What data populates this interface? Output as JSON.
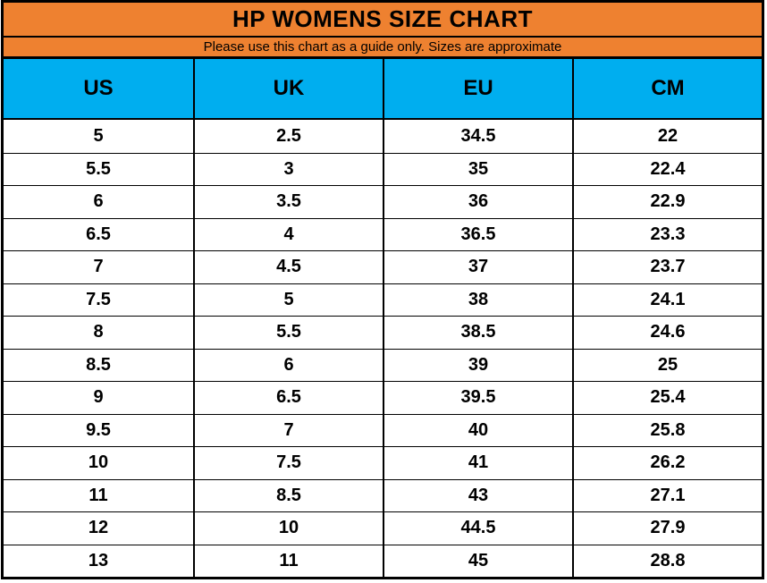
{
  "table": {
    "title": "HP WOMENS SIZE CHART",
    "subtitle": "Please use this chart as a guide only. Sizes are approximate",
    "columns": [
      "US",
      "UK",
      "EU",
      "CM"
    ],
    "rows": [
      [
        "5",
        "2.5",
        "34.5",
        "22"
      ],
      [
        "5.5",
        "3",
        "35",
        "22.4"
      ],
      [
        "6",
        "3.5",
        "36",
        "22.9"
      ],
      [
        "6.5",
        "4",
        "36.5",
        "23.3"
      ],
      [
        "7",
        "4.5",
        "37",
        "23.7"
      ],
      [
        "7.5",
        "5",
        "38",
        "24.1"
      ],
      [
        "8",
        "5.5",
        "38.5",
        "24.6"
      ],
      [
        "8.5",
        "6",
        "39",
        "25"
      ],
      [
        "9",
        "6.5",
        "39.5",
        "25.4"
      ],
      [
        "9.5",
        "7",
        "40",
        "25.8"
      ],
      [
        "10",
        "7.5",
        "41",
        "26.2"
      ],
      [
        "11",
        "8.5",
        "43",
        "27.1"
      ],
      [
        "12",
        "10",
        "44.5",
        "27.9"
      ],
      [
        "13",
        "11",
        "45",
        "28.8"
      ]
    ],
    "colors": {
      "title_background": "#EE8130",
      "header_background": "#00AEEF",
      "border": "#000000",
      "text": "#000000",
      "row_background": "#FFFFFF"
    }
  },
  "chart_data": {
    "type": "table",
    "title": "HP WOMENS SIZE CHART",
    "subtitle": "Please use this chart as a guide only. Sizes are approximate",
    "columns": [
      "US",
      "UK",
      "EU",
      "CM"
    ],
    "series": [
      {
        "name": "US",
        "values": [
          5,
          5.5,
          6,
          6.5,
          7,
          7.5,
          8,
          8.5,
          9,
          9.5,
          10,
          11,
          12,
          13
        ]
      },
      {
        "name": "UK",
        "values": [
          2.5,
          3,
          3.5,
          4,
          4.5,
          5,
          5.5,
          6,
          6.5,
          7,
          7.5,
          8.5,
          10,
          11
        ]
      },
      {
        "name": "EU",
        "values": [
          34.5,
          35,
          36,
          36.5,
          37,
          38,
          38.5,
          39,
          39.5,
          40,
          41,
          43,
          44.5,
          45
        ]
      },
      {
        "name": "CM",
        "values": [
          22,
          22.4,
          22.9,
          23.3,
          23.7,
          24.1,
          24.6,
          25,
          25.4,
          25.8,
          26.2,
          27.1,
          27.9,
          28.8
        ]
      }
    ]
  }
}
